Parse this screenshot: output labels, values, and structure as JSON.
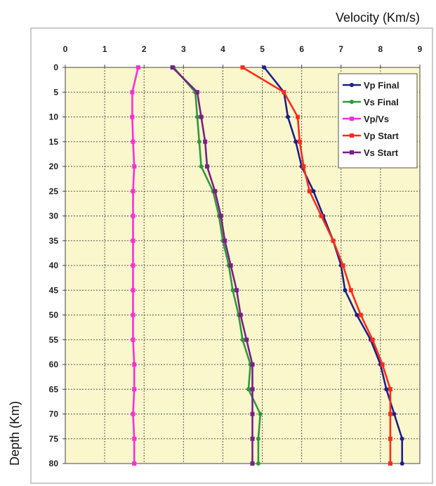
{
  "chart_data": {
    "type": "line",
    "orientation": "depth-profile",
    "xlabel": "Velocity (Km/s)",
    "ylabel": "Depth (Km)",
    "xlim": [
      0,
      9
    ],
    "ylim": [
      0,
      80
    ],
    "x_ticks": [
      0,
      1,
      2,
      3,
      4,
      5,
      6,
      7,
      8,
      9
    ],
    "y_ticks": [
      0,
      5,
      10,
      15,
      20,
      25,
      30,
      35,
      40,
      45,
      50,
      55,
      60,
      65,
      70,
      75,
      80
    ],
    "y_inverted": true,
    "grid": true,
    "plot_background": "#fbf7cc",
    "legend_position": "top-right",
    "depth": [
      0,
      5,
      10,
      15,
      20,
      25,
      30,
      35,
      40,
      45,
      50,
      55,
      60,
      65,
      70,
      75,
      80
    ],
    "series": [
      {
        "name": "Vp Final",
        "color": "#1f1f8a",
        "marker": "circle",
        "values": [
          5.05,
          5.55,
          5.65,
          5.85,
          6.0,
          6.3,
          6.55,
          6.8,
          7.0,
          7.1,
          7.4,
          7.75,
          8.0,
          8.15,
          8.35,
          8.55,
          8.55
        ]
      },
      {
        "name": "Vs Final",
        "color": "#2e9a3a",
        "marker": "circle",
        "values": [
          2.75,
          3.3,
          3.35,
          3.4,
          3.45,
          3.75,
          3.9,
          4.0,
          4.15,
          4.25,
          4.4,
          4.5,
          4.7,
          4.65,
          4.95,
          4.9,
          4.9
        ]
      },
      {
        "name": "Vp/Vs",
        "color": "#ff2cdb",
        "marker": "square",
        "values": [
          1.85,
          1.7,
          1.7,
          1.72,
          1.75,
          1.72,
          1.72,
          1.72,
          1.72,
          1.72,
          1.72,
          1.72,
          1.75,
          1.75,
          1.72,
          1.75,
          1.75
        ]
      },
      {
        "name": "Vp Start",
        "color": "#ff2b1a",
        "marker": "square",
        "values": [
          4.5,
          5.55,
          5.9,
          5.95,
          6.05,
          6.2,
          6.5,
          6.8,
          7.05,
          7.25,
          7.5,
          7.8,
          8.05,
          8.25,
          8.25,
          8.25,
          8.25
        ]
      },
      {
        "name": "Vs Start",
        "color": "#7a1f8a",
        "marker": "square",
        "values": [
          2.72,
          3.35,
          3.45,
          3.55,
          3.6,
          3.8,
          3.95,
          4.05,
          4.2,
          4.35,
          4.45,
          4.6,
          4.75,
          4.75,
          4.75,
          4.75,
          4.75
        ]
      }
    ]
  }
}
